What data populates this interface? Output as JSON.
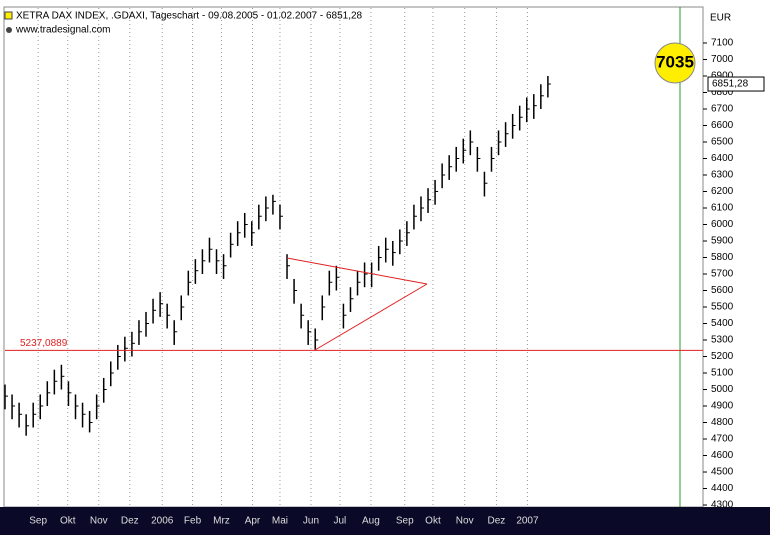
{
  "chart_data": {
    "type": "ohlc",
    "title": "XETRA DAX INDEX, .GDAXI, Tageschart - 09.08.2005 - 01.02.2007 - 6851,28",
    "source": "www.tradesignal.com",
    "currency": "EUR",
    "close": [
      4960,
      4900,
      4850,
      4780,
      4850,
      4900,
      4980,
      5050,
      5080,
      4980,
      4900,
      4850,
      4800,
      4900,
      5000,
      5100,
      5200,
      5250,
      5280,
      5350,
      5400,
      5480,
      5520,
      5450,
      5350,
      5500,
      5650,
      5720,
      5780,
      5850,
      5780,
      5750,
      5880,
      5950,
      6000,
      5950,
      6050,
      6100,
      6140,
      6050,
      5750,
      5600,
      5450,
      5350,
      5300,
      5500,
      5650,
      5680,
      5450,
      5550,
      5650,
      5700,
      5700,
      5800,
      5850,
      5830,
      5900,
      5950,
      6050,
      6100,
      6150,
      6200,
      6300,
      6350,
      6400,
      6450,
      6500,
      6400,
      6250,
      6400,
      6500,
      6550,
      6600,
      6650,
      6700,
      6720,
      6780,
      6851.28
    ],
    "high": [
      5030,
      4970,
      4920,
      4850,
      4920,
      4970,
      5050,
      5120,
      5150,
      5050,
      4970,
      4920,
      4870,
      4970,
      5070,
      5170,
      5270,
      5320,
      5350,
      5420,
      5470,
      5550,
      5590,
      5520,
      5420,
      5570,
      5720,
      5790,
      5850,
      5920,
      5850,
      5820,
      5950,
      6020,
      6070,
      6020,
      6120,
      6170,
      6180,
      6120,
      5820,
      5670,
      5520,
      5420,
      5370,
      5570,
      5720,
      5750,
      5520,
      5620,
      5720,
      5770,
      5770,
      5870,
      5920,
      5900,
      5970,
      6020,
      6120,
      6170,
      6220,
      6270,
      6370,
      6420,
      6470,
      6520,
      6570,
      6470,
      6320,
      6470,
      6570,
      6620,
      6670,
      6720,
      6770,
      6790,
      6850,
      6900
    ],
    "low": [
      4880,
      4820,
      4770,
      4720,
      4770,
      4820,
      4900,
      4970,
      5000,
      4900,
      4820,
      4770,
      4740,
      4820,
      4920,
      5020,
      5120,
      5170,
      5200,
      5270,
      5320,
      5400,
      5440,
      5370,
      5270,
      5420,
      5570,
      5640,
      5700,
      5770,
      5700,
      5670,
      5800,
      5870,
      5920,
      5870,
      5970,
      6020,
      6060,
      5970,
      5670,
      5520,
      5370,
      5270,
      5240,
      5420,
      5570,
      5600,
      5370,
      5470,
      5570,
      5620,
      5620,
      5720,
      5770,
      5750,
      5820,
      5870,
      5970,
      6020,
      6070,
      6120,
      6220,
      6270,
      6320,
      6370,
      6420,
      6320,
      6170,
      6320,
      6420,
      6470,
      6520,
      6570,
      6620,
      6640,
      6700,
      6770
    ],
    "xlim": [
      0,
      99
    ],
    "xticks": [
      {
        "value": 4.7,
        "label": "Sep"
      },
      {
        "value": 8.9,
        "label": "Okt"
      },
      {
        "value": 13.3,
        "label": "Nov"
      },
      {
        "value": 17.7,
        "label": "Dez"
      },
      {
        "value": 22.3,
        "label": "2006"
      },
      {
        "value": 26.6,
        "label": "Feb"
      },
      {
        "value": 30.7,
        "label": "Mrz"
      },
      {
        "value": 35.1,
        "label": "Apr"
      },
      {
        "value": 39,
        "label": "Mai"
      },
      {
        "value": 43.4,
        "label": "Jun"
      },
      {
        "value": 47.5,
        "label": "Jul"
      },
      {
        "value": 51.9,
        "label": "Aug"
      },
      {
        "value": 56.7,
        "label": "Sep"
      },
      {
        "value": 60.7,
        "label": "Okt"
      },
      {
        "value": 65.2,
        "label": "Nov"
      },
      {
        "value": 69.7,
        "label": "Dez"
      },
      {
        "value": 74.1,
        "label": "2007"
      }
    ],
    "ylim": [
      4288,
      7312
    ],
    "yticks": [
      4300,
      4400,
      4500,
      4600,
      4700,
      4800,
      4900,
      5000,
      5100,
      5200,
      5300,
      5400,
      5500,
      5600,
      5700,
      5800,
      5900,
      6000,
      6100,
      6200,
      6300,
      6400,
      6500,
      6600,
      6700,
      6800,
      6900,
      7000,
      7100
    ],
    "support_line": {
      "value": 5237.0889,
      "label": "5237,0889"
    },
    "last_price": {
      "value": 6851.28,
      "label": "6851,28"
    },
    "target": 7035,
    "color": "#000000"
  }
}
